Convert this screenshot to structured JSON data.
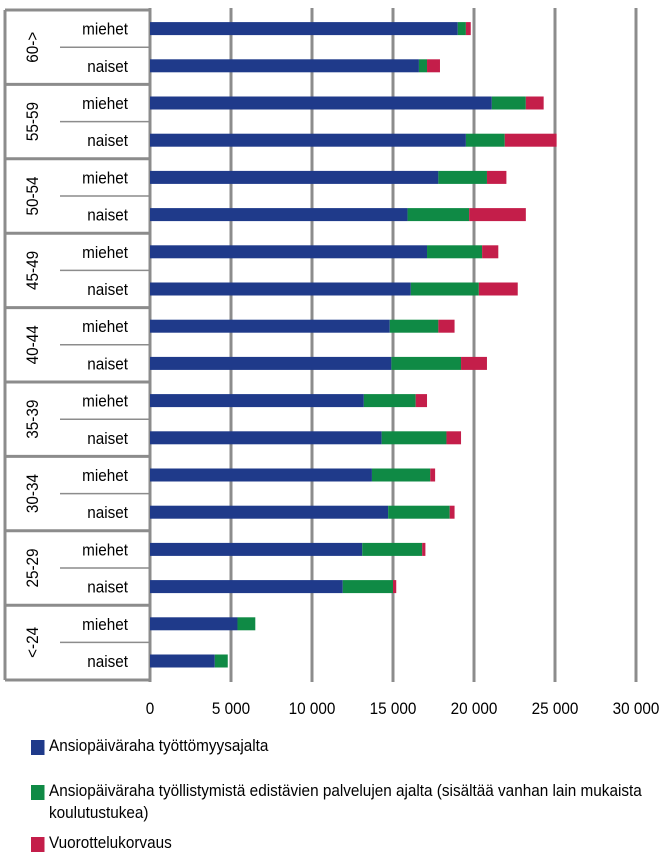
{
  "chart_data": {
    "type": "bar",
    "orientation": "horizontal",
    "stacked": true,
    "xlim": [
      0,
      30000
    ],
    "x_ticks": [
      "0",
      "5 000",
      "10 000",
      "15 000",
      "20 000",
      "25 000",
      "30 000"
    ],
    "x_tick_values": [
      0,
      5000,
      10000,
      15000,
      20000,
      25000,
      30000
    ],
    "grid": true,
    "legend_position": "bottom",
    "groups": [
      {
        "label": "60->",
        "rows": [
          {
            "label": "miehet",
            "values": [
              19000,
              500,
              300
            ]
          },
          {
            "label": "naiset",
            "values": [
              16600,
              500,
              800
            ]
          }
        ]
      },
      {
        "label": "55-59",
        "rows": [
          {
            "label": "miehet",
            "values": [
              21100,
              2100,
              1100
            ]
          },
          {
            "label": "naiset",
            "values": [
              19500,
              2400,
              3200
            ]
          }
        ]
      },
      {
        "label": "50-54",
        "rows": [
          {
            "label": "miehet",
            "values": [
              17800,
              3000,
              1200
            ]
          },
          {
            "label": "naiset",
            "values": [
              15900,
              3800,
              3500
            ]
          }
        ]
      },
      {
        "label": "45-49",
        "rows": [
          {
            "label": "miehet",
            "values": [
              17100,
              3400,
              1000
            ]
          },
          {
            "label": "naiset",
            "values": [
              16100,
              4200,
              2400
            ]
          }
        ]
      },
      {
        "label": "40-44",
        "rows": [
          {
            "label": "miehet",
            "values": [
              14800,
              3000,
              1000
            ]
          },
          {
            "label": "naiset",
            "values": [
              14900,
              4300,
              1600
            ]
          }
        ]
      },
      {
        "label": "35-39",
        "rows": [
          {
            "label": "miehet",
            "values": [
              13200,
              3200,
              700
            ]
          },
          {
            "label": "naiset",
            "values": [
              14300,
              4000,
              900
            ]
          }
        ]
      },
      {
        "label": "30-34",
        "rows": [
          {
            "label": "miehet",
            "values": [
              13700,
              3600,
              300
            ]
          },
          {
            "label": "naiset",
            "values": [
              14700,
              3800,
              300
            ]
          }
        ]
      },
      {
        "label": "25-29",
        "rows": [
          {
            "label": "miehet",
            "values": [
              13100,
              3700,
              200
            ]
          },
          {
            "label": "naiset",
            "values": [
              11900,
              3100,
              200
            ]
          }
        ]
      },
      {
        "label": "<-24",
        "rows": [
          {
            "label": "miehet",
            "values": [
              5400,
              1100,
              0
            ]
          },
          {
            "label": "naiset",
            "values": [
              4000,
              800,
              0
            ]
          }
        ]
      }
    ],
    "series": [
      {
        "name": "Ansiopäiväraha työttömyysajalta",
        "color": "#1f3a8a"
      },
      {
        "name": "Ansiopäiväraha työllistymistä edistävien palvelujen ajalta (sisältää vanhan lain mukaista  koulutustukea)",
        "color": "#0f8a45"
      },
      {
        "name": "Vuorottelukorvaus",
        "color": "#c41e4a"
      }
    ]
  }
}
